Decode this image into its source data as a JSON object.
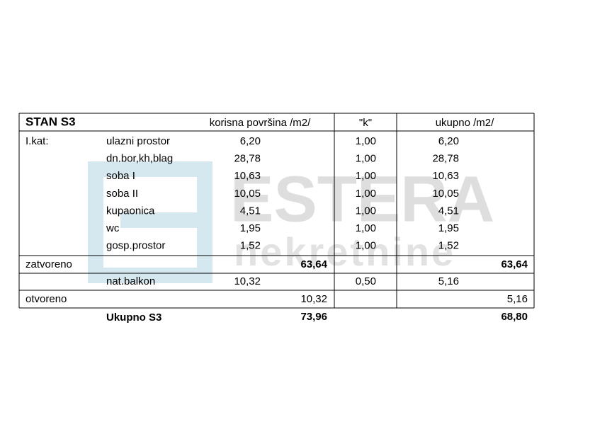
{
  "title": "STAN S3",
  "columns": {
    "area": "korisna površina /m2/",
    "k": "\"k\"",
    "total": "ukupno /m2/"
  },
  "floor": "I.kat:",
  "rooms": [
    {
      "name": "ulazni prostor",
      "area": "6,20",
      "k": "1,00",
      "total": "6,20"
    },
    {
      "name": "dn.bor,kh,blag",
      "area": "28,78",
      "k": "1,00",
      "total": "28,78"
    },
    {
      "name": "soba I",
      "area": "10,63",
      "k": "1,00",
      "total": "10,63"
    },
    {
      "name": "soba II",
      "area": "10,05",
      "k": "1,00",
      "total": "10,05"
    },
    {
      "name": "kupaonica",
      "area": "4,51",
      "k": "1,00",
      "total": "4,51"
    },
    {
      "name": "wc",
      "area": "1,95",
      "k": "1,00",
      "total": "1,95"
    },
    {
      "name": "gosp.prostor",
      "area": "1,52",
      "k": "1,00",
      "total": "1,52"
    }
  ],
  "closed": {
    "label": "zatvoreno",
    "area": "63,64",
    "total": "63,64"
  },
  "balcony": {
    "name": "nat.balkon",
    "area": "10,32",
    "k": "0,50",
    "total": "5,16"
  },
  "open": {
    "label": "otvoreno",
    "area": "10,32",
    "total": "5,16"
  },
  "grand": {
    "label": "Ukupno S3",
    "area": "73,96",
    "total": "68,80"
  },
  "watermark": {
    "brand": "ESTERA",
    "tagline": "nekretnine"
  }
}
